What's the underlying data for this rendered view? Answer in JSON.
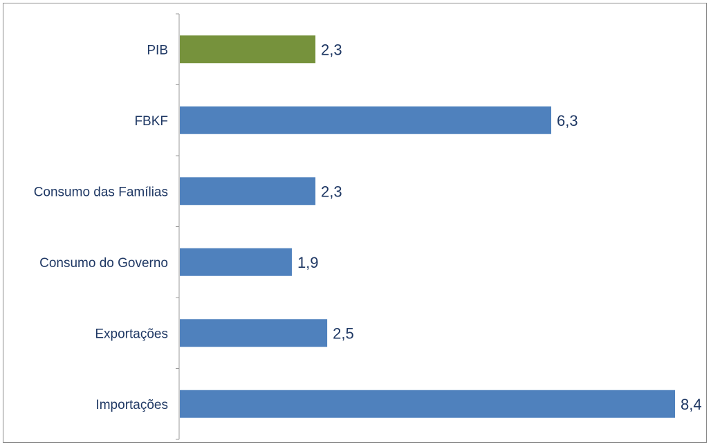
{
  "chart_data": {
    "type": "bar",
    "orientation": "horizontal",
    "categories": [
      "PIB",
      "FBKF",
      "Consumo das Famílias",
      "Consumo do Governo",
      "Exportações",
      "Importações"
    ],
    "values": [
      2.3,
      6.3,
      2.3,
      1.9,
      2.5,
      8.4
    ],
    "value_labels": [
      "2,3",
      "6,3",
      "2,3",
      "1,9",
      "2,5",
      "8,4"
    ],
    "colors": [
      "#76923c",
      "#4f81bd",
      "#4f81bd",
      "#4f81bd",
      "#4f81bd",
      "#4f81bd"
    ],
    "title": "",
    "xlabel": "",
    "ylabel": "",
    "xlim": [
      0,
      8.4
    ],
    "grid": false,
    "legend": "none"
  }
}
